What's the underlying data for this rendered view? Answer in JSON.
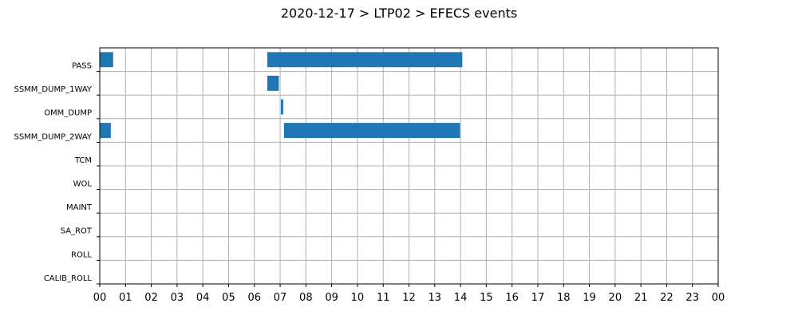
{
  "chart_data": {
    "type": "bar",
    "orientation": "horizontal-timeline",
    "title": "2020-12-17 > LTP02 > EFECS events",
    "xlabel": "",
    "ylabel": "",
    "x_unit": "hour",
    "xlim": [
      0,
      24
    ],
    "grid": true,
    "categories": [
      "PASS",
      "SSMM_DUMP_1WAY",
      "OMM_DUMP",
      "SSMM_DUMP_2WAY",
      "TCM",
      "WOL",
      "MAINT",
      "SA_ROT",
      "ROLL",
      "CALIB_ROLL"
    ],
    "x_tick_labels": [
      "00",
      "01",
      "02",
      "03",
      "04",
      "05",
      "06",
      "07",
      "08",
      "09",
      "10",
      "11",
      "12",
      "13",
      "14",
      "15",
      "16",
      "17",
      "18",
      "19",
      "20",
      "21",
      "22",
      "23",
      "00"
    ],
    "bar_color": "#1f77b4",
    "events": [
      {
        "category": "PASS",
        "start": 0.0,
        "end": 0.52
      },
      {
        "category": "PASS",
        "start": 6.5,
        "end": 14.07
      },
      {
        "category": "SSMM_DUMP_1WAY",
        "start": 6.5,
        "end": 6.95
      },
      {
        "category": "OMM_DUMP",
        "start": 7.03,
        "end": 7.12
      },
      {
        "category": "SSMM_DUMP_2WAY",
        "start": 0.0,
        "end": 0.43
      },
      {
        "category": "SSMM_DUMP_2WAY",
        "start": 7.15,
        "end": 13.98
      }
    ]
  }
}
